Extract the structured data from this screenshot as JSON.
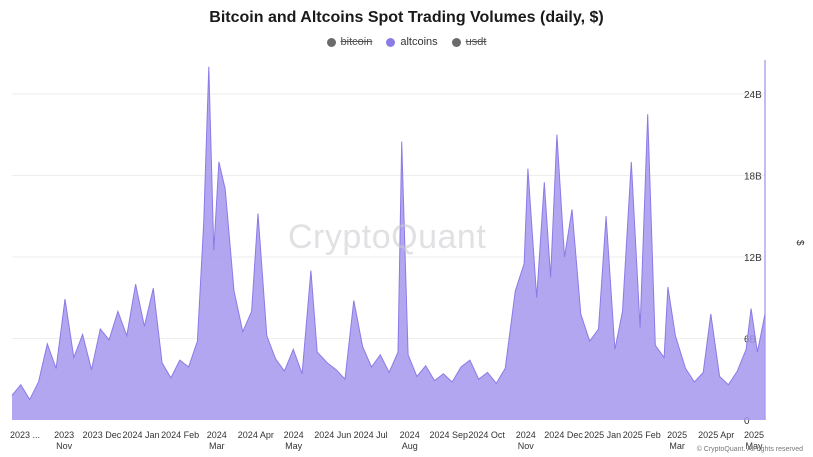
{
  "chart_data": {
    "type": "area",
    "title": "Bitcoin and Altcoins Spot Trading Volumes (daily, $)",
    "legend": [
      {
        "name": "bitcoin",
        "color": "#6b6b6b",
        "visible": false
      },
      {
        "name": "altcoins",
        "color": "#8a7be6",
        "visible": true
      },
      {
        "name": "usdt",
        "color": "#6b6b6b",
        "visible": false
      }
    ],
    "ylabel": "$",
    "ylim": [
      0,
      26500000000
    ],
    "y_ticks": [
      {
        "value": 0,
        "label": "0"
      },
      {
        "value": 6000000000,
        "label": "6B"
      },
      {
        "value": 12000000000,
        "label": "12B"
      },
      {
        "value": 18000000000,
        "label": "18B"
      },
      {
        "value": 24000000000,
        "label": "24B"
      }
    ],
    "x_start": "2023-10-01",
    "x_end": "2025-05-20",
    "x_ticks": [
      {
        "date": "2023-10-01",
        "line1": "2023 ...",
        "line2": ""
      },
      {
        "date": "2023-11-01",
        "line1": "2023",
        "line2": "Nov"
      },
      {
        "date": "2023-12-01",
        "line1": "2023 Dec",
        "line2": ""
      },
      {
        "date": "2024-01-01",
        "line1": "2024 Jan",
        "line2": ""
      },
      {
        "date": "2024-02-01",
        "line1": "2024 Feb",
        "line2": ""
      },
      {
        "date": "2024-03-01",
        "line1": "2024",
        "line2": "Mar"
      },
      {
        "date": "2024-04-01",
        "line1": "2024 Apr",
        "line2": ""
      },
      {
        "date": "2024-05-01",
        "line1": "2024",
        "line2": "May"
      },
      {
        "date": "2024-06-01",
        "line1": "2024 Jun",
        "line2": ""
      },
      {
        "date": "2024-07-01",
        "line1": "2024 Jul",
        "line2": ""
      },
      {
        "date": "2024-08-01",
        "line1": "2024",
        "line2": "Aug"
      },
      {
        "date": "2024-09-01",
        "line1": "2024 Sep",
        "line2": ""
      },
      {
        "date": "2024-10-01",
        "line1": "2024 Oct",
        "line2": ""
      },
      {
        "date": "2024-11-01",
        "line1": "2024",
        "line2": "Nov"
      },
      {
        "date": "2024-12-01",
        "line1": "2024 Dec",
        "line2": ""
      },
      {
        "date": "2025-01-01",
        "line1": "2025 Jan",
        "line2": ""
      },
      {
        "date": "2025-02-01",
        "line1": "2025 Feb",
        "line2": ""
      },
      {
        "date": "2025-03-01",
        "line1": "2025",
        "line2": "Mar"
      },
      {
        "date": "2025-04-01",
        "line1": "2025 Apr",
        "line2": ""
      },
      {
        "date": "2025-05-01",
        "line1": "2025",
        "line2": "May"
      }
    ],
    "series": [
      {
        "name": "altcoins",
        "color": "#8a7be6",
        "points": [
          {
            "date": "2023-10-01",
            "value": 1800000000
          },
          {
            "date": "2023-10-08",
            "value": 2600000000
          },
          {
            "date": "2023-10-15",
            "value": 1500000000
          },
          {
            "date": "2023-10-22",
            "value": 2800000000
          },
          {
            "date": "2023-10-29",
            "value": 5600000000
          },
          {
            "date": "2023-11-05",
            "value": 3800000000
          },
          {
            "date": "2023-11-12",
            "value": 8900000000
          },
          {
            "date": "2023-11-19",
            "value": 4600000000
          },
          {
            "date": "2023-11-26",
            "value": 6300000000
          },
          {
            "date": "2023-12-03",
            "value": 3700000000
          },
          {
            "date": "2023-12-10",
            "value": 6700000000
          },
          {
            "date": "2023-12-17",
            "value": 5900000000
          },
          {
            "date": "2023-12-24",
            "value": 8000000000
          },
          {
            "date": "2023-12-31",
            "value": 6200000000
          },
          {
            "date": "2024-01-07",
            "value": 10000000000
          },
          {
            "date": "2024-01-14",
            "value": 6900000000
          },
          {
            "date": "2024-01-21",
            "value": 9700000000
          },
          {
            "date": "2024-01-28",
            "value": 4200000000
          },
          {
            "date": "2024-02-04",
            "value": 3100000000
          },
          {
            "date": "2024-02-11",
            "value": 4400000000
          },
          {
            "date": "2024-02-18",
            "value": 3900000000
          },
          {
            "date": "2024-02-25",
            "value": 5800000000
          },
          {
            "date": "2024-03-01",
            "value": 14500000000
          },
          {
            "date": "2024-03-05",
            "value": 26000000000
          },
          {
            "date": "2024-03-09",
            "value": 12500000000
          },
          {
            "date": "2024-03-13",
            "value": 19000000000
          },
          {
            "date": "2024-03-18",
            "value": 17000000000
          },
          {
            "date": "2024-03-25",
            "value": 9500000000
          },
          {
            "date": "2024-04-01",
            "value": 6500000000
          },
          {
            "date": "2024-04-08",
            "value": 8000000000
          },
          {
            "date": "2024-04-13",
            "value": 15200000000
          },
          {
            "date": "2024-04-20",
            "value": 6200000000
          },
          {
            "date": "2024-04-27",
            "value": 4500000000
          },
          {
            "date": "2024-05-04",
            "value": 3600000000
          },
          {
            "date": "2024-05-11",
            "value": 5200000000
          },
          {
            "date": "2024-05-18",
            "value": 3400000000
          },
          {
            "date": "2024-05-25",
            "value": 11000000000
          },
          {
            "date": "2024-05-30",
            "value": 5000000000
          },
          {
            "date": "2024-06-07",
            "value": 4200000000
          },
          {
            "date": "2024-06-14",
            "value": 3700000000
          },
          {
            "date": "2024-06-21",
            "value": 3000000000
          },
          {
            "date": "2024-06-28",
            "value": 8800000000
          },
          {
            "date": "2024-07-05",
            "value": 5400000000
          },
          {
            "date": "2024-07-12",
            "value": 3900000000
          },
          {
            "date": "2024-07-19",
            "value": 4800000000
          },
          {
            "date": "2024-07-26",
            "value": 3500000000
          },
          {
            "date": "2024-08-02",
            "value": 5000000000
          },
          {
            "date": "2024-08-05",
            "value": 20500000000
          },
          {
            "date": "2024-08-10",
            "value": 4800000000
          },
          {
            "date": "2024-08-17",
            "value": 3200000000
          },
          {
            "date": "2024-08-24",
            "value": 4000000000
          },
          {
            "date": "2024-08-31",
            "value": 2900000000
          },
          {
            "date": "2024-09-07",
            "value": 3400000000
          },
          {
            "date": "2024-09-14",
            "value": 2800000000
          },
          {
            "date": "2024-09-21",
            "value": 3900000000
          },
          {
            "date": "2024-09-28",
            "value": 4400000000
          },
          {
            "date": "2024-10-05",
            "value": 3000000000
          },
          {
            "date": "2024-10-12",
            "value": 3500000000
          },
          {
            "date": "2024-10-19",
            "value": 2700000000
          },
          {
            "date": "2024-10-26",
            "value": 3800000000
          },
          {
            "date": "2024-11-03",
            "value": 9500000000
          },
          {
            "date": "2024-11-10",
            "value": 11500000000
          },
          {
            "date": "2024-11-13",
            "value": 18500000000
          },
          {
            "date": "2024-11-20",
            "value": 9000000000
          },
          {
            "date": "2024-11-26",
            "value": 17500000000
          },
          {
            "date": "2024-12-01",
            "value": 10500000000
          },
          {
            "date": "2024-12-06",
            "value": 21000000000
          },
          {
            "date": "2024-12-12",
            "value": 12000000000
          },
          {
            "date": "2024-12-18",
            "value": 15500000000
          },
          {
            "date": "2024-12-25",
            "value": 7800000000
          },
          {
            "date": "2025-01-01",
            "value": 5800000000
          },
          {
            "date": "2025-01-08",
            "value": 6700000000
          },
          {
            "date": "2025-01-14",
            "value": 15000000000
          },
          {
            "date": "2025-01-21",
            "value": 5200000000
          },
          {
            "date": "2025-01-27",
            "value": 8000000000
          },
          {
            "date": "2025-02-03",
            "value": 19000000000
          },
          {
            "date": "2025-02-10",
            "value": 6800000000
          },
          {
            "date": "2025-02-16",
            "value": 22500000000
          },
          {
            "date": "2025-02-22",
            "value": 5500000000
          },
          {
            "date": "2025-03-01",
            "value": 4600000000
          },
          {
            "date": "2025-03-04",
            "value": 9800000000
          },
          {
            "date": "2025-03-10",
            "value": 6200000000
          },
          {
            "date": "2025-03-18",
            "value": 3800000000
          },
          {
            "date": "2025-03-25",
            "value": 2800000000
          },
          {
            "date": "2025-04-01",
            "value": 3500000000
          },
          {
            "date": "2025-04-07",
            "value": 7800000000
          },
          {
            "date": "2025-04-14",
            "value": 3200000000
          },
          {
            "date": "2025-04-21",
            "value": 2600000000
          },
          {
            "date": "2025-04-28",
            "value": 3600000000
          },
          {
            "date": "2025-05-05",
            "value": 5200000000
          },
          {
            "date": "2025-05-09",
            "value": 8200000000
          },
          {
            "date": "2025-05-14",
            "value": 5000000000
          },
          {
            "date": "2025-05-20",
            "value": 7800000000
          }
        ]
      }
    ],
    "grid": true
  },
  "watermark": "CryptoQuant",
  "copyright": "© CryptoQuant. All rights reserved"
}
